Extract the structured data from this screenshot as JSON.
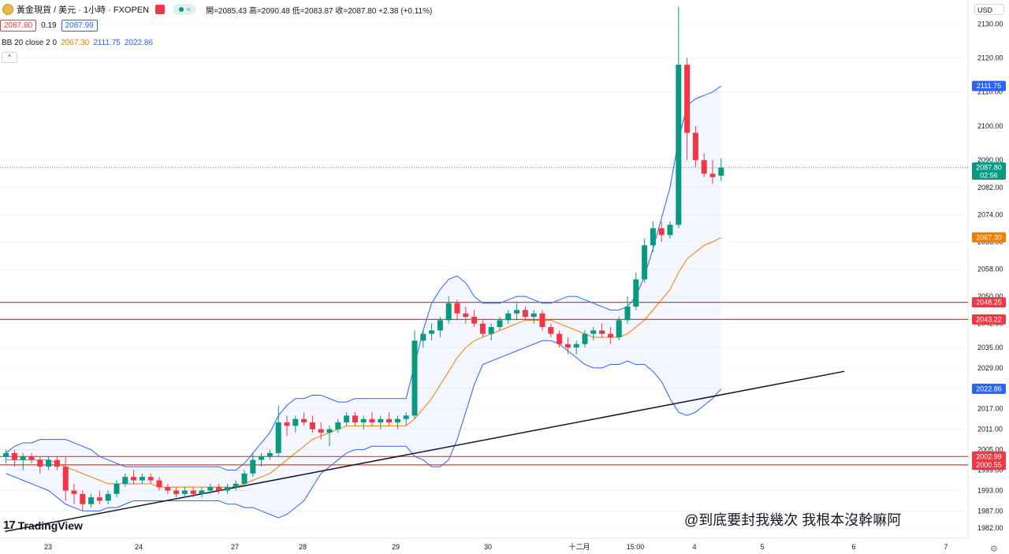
{
  "header": {
    "symbol": "黃金現貨 / 美元 · 1小時 · FXOPEN",
    "ohlc_text": "開=2085.43 高=2090.48 低=2083.87 收=2087.80 +2.38 (+0.11%)",
    "pill_text": "≈",
    "sell_price": "2087.80",
    "spread": "0.19",
    "buy_price": "2087.99",
    "indicator_label": "BB 20 close 2 0",
    "bb_mid": "2067.30",
    "bb_upper": "2111.75",
    "bb_lower": "2022.86",
    "collapse_glyph": "^",
    "currency": "USD"
  },
  "branding": {
    "logo_mark": "17",
    "logo_text": "TradingView",
    "watermark": "@到底要封我幾次 我根本沒幹嘛阿"
  },
  "colors": {
    "up": "#089981",
    "down": "#f23645",
    "bb_band": "#2962ff",
    "bb_mid": "#f57c00",
    "hline": "#e53935",
    "trendline": "#131722"
  },
  "chart_data": {
    "type": "candlestick",
    "title": "黃金現貨 / 美元 · 1小時 · FXOPEN",
    "ylim": [
      1979,
      2137
    ],
    "y_ticks": [
      2130,
      2120,
      2110,
      2100,
      2090,
      2082,
      2074,
      2066,
      2058,
      2050,
      2042,
      2035,
      2029,
      2023,
      2017,
      2011,
      2005,
      1999,
      1993,
      1987,
      1982
    ],
    "y_tick_labels": [
      "2130.00",
      "2120.00",
      "2110.00",
      "2100.00",
      "2090.00",
      "2082.00",
      "2074.00",
      "2066.00",
      "2058.00",
      "2050.00",
      "2042.00",
      "2035.00",
      "2029.00",
      "2023.00",
      "2017.00",
      "2011.00",
      "2005.00",
      "1999.00",
      "1993.00",
      "1987.00",
      "1982.00"
    ],
    "x_labels": [
      "23",
      "24",
      "27",
      "28",
      "29",
      "30",
      "十二月",
      "15:00",
      "4",
      "5",
      "6",
      "7"
    ],
    "price_labels": [
      {
        "value": 2111.75,
        "text": "2111.75",
        "color": "#2962ff"
      },
      {
        "value": 2087.8,
        "text": "2087.80",
        "sub": "02:56",
        "color": "#089981"
      },
      {
        "value": 2067.3,
        "text": "2067.30",
        "color": "#f57c00"
      },
      {
        "value": 2048.25,
        "text": "2048.25",
        "color": "#f23645"
      },
      {
        "value": 2043.22,
        "text": "2043.22",
        "color": "#f23645"
      },
      {
        "value": 2022.86,
        "text": "2022.86",
        "color": "#2962ff"
      },
      {
        "value": 2002.99,
        "text": "2002.99",
        "color": "#f23645"
      },
      {
        "value": 2000.55,
        "text": "2000.55",
        "color": "#f23645"
      }
    ],
    "horizontal_lines": [
      2048.25,
      2043.22,
      2002.99,
      2000.55
    ],
    "last_price": 2087.8,
    "trendline": {
      "from": {
        "x": 0.4,
        "y": 1981
      },
      "to": {
        "x": 99,
        "y": 2028
      }
    },
    "candles": [
      [
        2003,
        2005,
        2001,
        2004
      ],
      [
        2004,
        2005,
        2000,
        2002
      ],
      [
        2002,
        2004,
        1999,
        2003
      ],
      [
        2003,
        2004,
        2001,
        2002
      ],
      [
        2002,
        2003,
        1998,
        2000
      ],
      [
        2000,
        2003,
        1999,
        2002
      ],
      [
        2002,
        2003,
        1999,
        2000
      ],
      [
        2000,
        2003,
        1990,
        1993
      ],
      [
        1993,
        1995,
        1989,
        1992
      ],
      [
        1992,
        1993,
        1987,
        1989
      ],
      [
        1989,
        1992,
        1988,
        1991
      ],
      [
        1991,
        1993,
        1989,
        1990
      ],
      [
        1990,
        1993,
        1989,
        1992
      ],
      [
        1992,
        1996,
        1991,
        1995
      ],
      [
        1995,
        1998,
        1994,
        1997
      ],
      [
        1997,
        1999,
        1995,
        1996
      ],
      [
        1996,
        1998,
        1995,
        1997
      ],
      [
        1997,
        1998,
        1995,
        1996
      ],
      [
        1996,
        1997,
        1993,
        1994
      ],
      [
        1994,
        1995,
        1992,
        1993
      ],
      [
        1993,
        1994,
        1991,
        1992
      ],
      [
        1992,
        1994,
        1991,
        1993
      ],
      [
        1993,
        1994,
        1991,
        1992
      ],
      [
        1992,
        1994,
        1991,
        1993
      ],
      [
        1993,
        1995,
        1992,
        1994
      ],
      [
        1994,
        1995,
        1992,
        1993
      ],
      [
        1993,
        1995,
        1992,
        1994
      ],
      [
        1994,
        1996,
        1993,
        1995
      ],
      [
        1995,
        1999,
        1994,
        1998
      ],
      [
        1998,
        2004,
        1997,
        2002
      ],
      [
        2002,
        2004,
        2000,
        2003
      ],
      [
        2003,
        2005,
        2002,
        2004
      ],
      [
        2004,
        2018,
        2003,
        2013
      ],
      [
        2013,
        2015,
        2009,
        2012
      ],
      [
        2012,
        2015,
        2010,
        2014
      ],
      [
        2014,
        2016,
        2012,
        2013
      ],
      [
        2013,
        2015,
        2010,
        2011
      ],
      [
        2011,
        2013,
        2008,
        2010
      ],
      [
        2010,
        2012,
        2006,
        2011
      ],
      [
        2011,
        2014,
        2010,
        2013
      ],
      [
        2013,
        2016,
        2012,
        2015
      ],
      [
        2015,
        2016,
        2012,
        2013
      ],
      [
        2013,
        2015,
        2011,
        2014
      ],
      [
        2014,
        2016,
        2012,
        2013
      ],
      [
        2013,
        2015,
        2011,
        2014
      ],
      [
        2014,
        2016,
        2012,
        2013
      ],
      [
        2013,
        2015,
        2011,
        2014
      ],
      [
        2014,
        2016,
        2012,
        2015
      ],
      [
        2015,
        2040,
        2014,
        2037
      ],
      [
        2037,
        2040,
        2035,
        2039
      ],
      [
        2039,
        2042,
        2037,
        2040
      ],
      [
        2040,
        2044,
        2038,
        2043
      ],
      [
        2043,
        2050,
        2042,
        2048
      ],
      [
        2048,
        2049,
        2043,
        2045
      ],
      [
        2045,
        2047,
        2042,
        2044
      ],
      [
        2044,
        2046,
        2041,
        2042
      ],
      [
        2042,
        2043,
        2038,
        2039
      ],
      [
        2039,
        2042,
        2037,
        2041
      ],
      [
        2041,
        2044,
        2040,
        2043
      ],
      [
        2043,
        2046,
        2042,
        2045
      ],
      [
        2045,
        2048,
        2043,
        2046
      ],
      [
        2046,
        2047,
        2043,
        2044
      ],
      [
        2044,
        2046,
        2042,
        2045
      ],
      [
        2045,
        2046,
        2040,
        2041
      ],
      [
        2041,
        2042,
        2038,
        2039
      ],
      [
        2039,
        2040,
        2035,
        2036
      ],
      [
        2036,
        2038,
        2033,
        2035
      ],
      [
        2035,
        2037,
        2033,
        2036
      ],
      [
        2036,
        2040,
        2035,
        2039
      ],
      [
        2039,
        2041,
        2037,
        2040
      ],
      [
        2040,
        2042,
        2038,
        2039
      ],
      [
        2039,
        2041,
        2036,
        2038
      ],
      [
        2038,
        2044,
        2037,
        2043
      ],
      [
        2043,
        2050,
        2042,
        2047
      ],
      [
        2047,
        2057,
        2046,
        2055
      ],
      [
        2055,
        2067,
        2054,
        2065
      ],
      [
        2065,
        2072,
        2063,
        2070
      ],
      [
        2070,
        2072,
        2066,
        2068
      ],
      [
        2068,
        2072,
        2067,
        2071
      ],
      [
        2071,
        2135,
        2070,
        2118
      ],
      [
        2118,
        2120,
        2090,
        2098
      ],
      [
        2098,
        2100,
        2088,
        2090
      ],
      [
        2090,
        2092,
        2085,
        2086
      ],
      [
        2086,
        2090,
        2083,
        2085
      ],
      [
        2085.43,
        2090.48,
        2083.87,
        2087.8
      ]
    ],
    "bb_upper": [
      2004,
      2006,
      2007,
      2007,
      2008,
      2008,
      2008,
      2008,
      2007,
      2006,
      2005,
      2003,
      2002,
      2001,
      2000,
      2000,
      2000,
      2000,
      2000,
      2000,
      2000,
      2000,
      2000,
      2000,
      2000,
      2000,
      1999,
      1999,
      2001,
      2004,
      2007,
      2010,
      2015,
      2018,
      2020,
      2020,
      2021,
      2021,
      2020,
      2019,
      2019,
      2020,
      2020,
      2020,
      2020,
      2020,
      2020,
      2020,
      2030,
      2040,
      2048,
      2052,
      2055,
      2056,
      2054,
      2050,
      2048,
      2048,
      2048,
      2049,
      2050,
      2050,
      2049,
      2048,
      2048,
      2049,
      2050,
      2050,
      2049,
      2048,
      2047,
      2046,
      2046,
      2047,
      2050,
      2056,
      2064,
      2073,
      2082,
      2096,
      2106,
      2108,
      2109,
      2110,
      2111.75
    ],
    "bb_mid": [
      2002,
      2002,
      2002,
      2002,
      2002,
      2002,
      2001,
      2000,
      1999,
      1998,
      1997,
      1996,
      1995,
      1995,
      1995,
      1995,
      1995,
      1995,
      1994,
      1994,
      1994,
      1994,
      1994,
      1994,
      1994,
      1994,
      1994,
      1994,
      1995,
      1996,
      1997,
      1998,
      2000,
      2002,
      2004,
      2006,
      2008,
      2009,
      2010,
      2011,
      2012,
      2012,
      2012,
      2012,
      2012,
      2012,
      2012,
      2012,
      2014,
      2017,
      2020,
      2024,
      2028,
      2032,
      2035,
      2037,
      2038,
      2039,
      2040,
      2041,
      2042,
      2043,
      2043,
      2043,
      2043,
      2042,
      2041,
      2040,
      2039,
      2038,
      2038,
      2038,
      2038,
      2039,
      2041,
      2043,
      2046,
      2049,
      2052,
      2057,
      2061,
      2063,
      2065,
      2066,
      2067.3
    ],
    "bb_lower": [
      1998,
      1997,
      1996,
      1995,
      1994,
      1993,
      1991,
      1989,
      1988,
      1987,
      1987,
      1987,
      1988,
      1988,
      1989,
      1990,
      1990,
      1990,
      1990,
      1990,
      1990,
      1990,
      1990,
      1990,
      1990,
      1990,
      1989,
      1989,
      1988,
      1988,
      1987,
      1986,
      1985,
      1986,
      1988,
      1990,
      1994,
      1998,
      2000,
      2002,
      2004,
      2005,
      2005,
      2006,
      2006,
      2006,
      2006,
      2006,
      2003,
      2002,
      2000,
      2000,
      2002,
      2008,
      2016,
      2024,
      2030,
      2031,
      2032,
      2033,
      2034,
      2035,
      2036,
      2037,
      2037,
      2036,
      2034,
      2032,
      2030,
      2029,
      2029,
      2030,
      2030,
      2031,
      2030,
      2030,
      2028,
      2025,
      2020,
      2016,
      2015,
      2016,
      2018,
      2020,
      2022.86
    ]
  }
}
